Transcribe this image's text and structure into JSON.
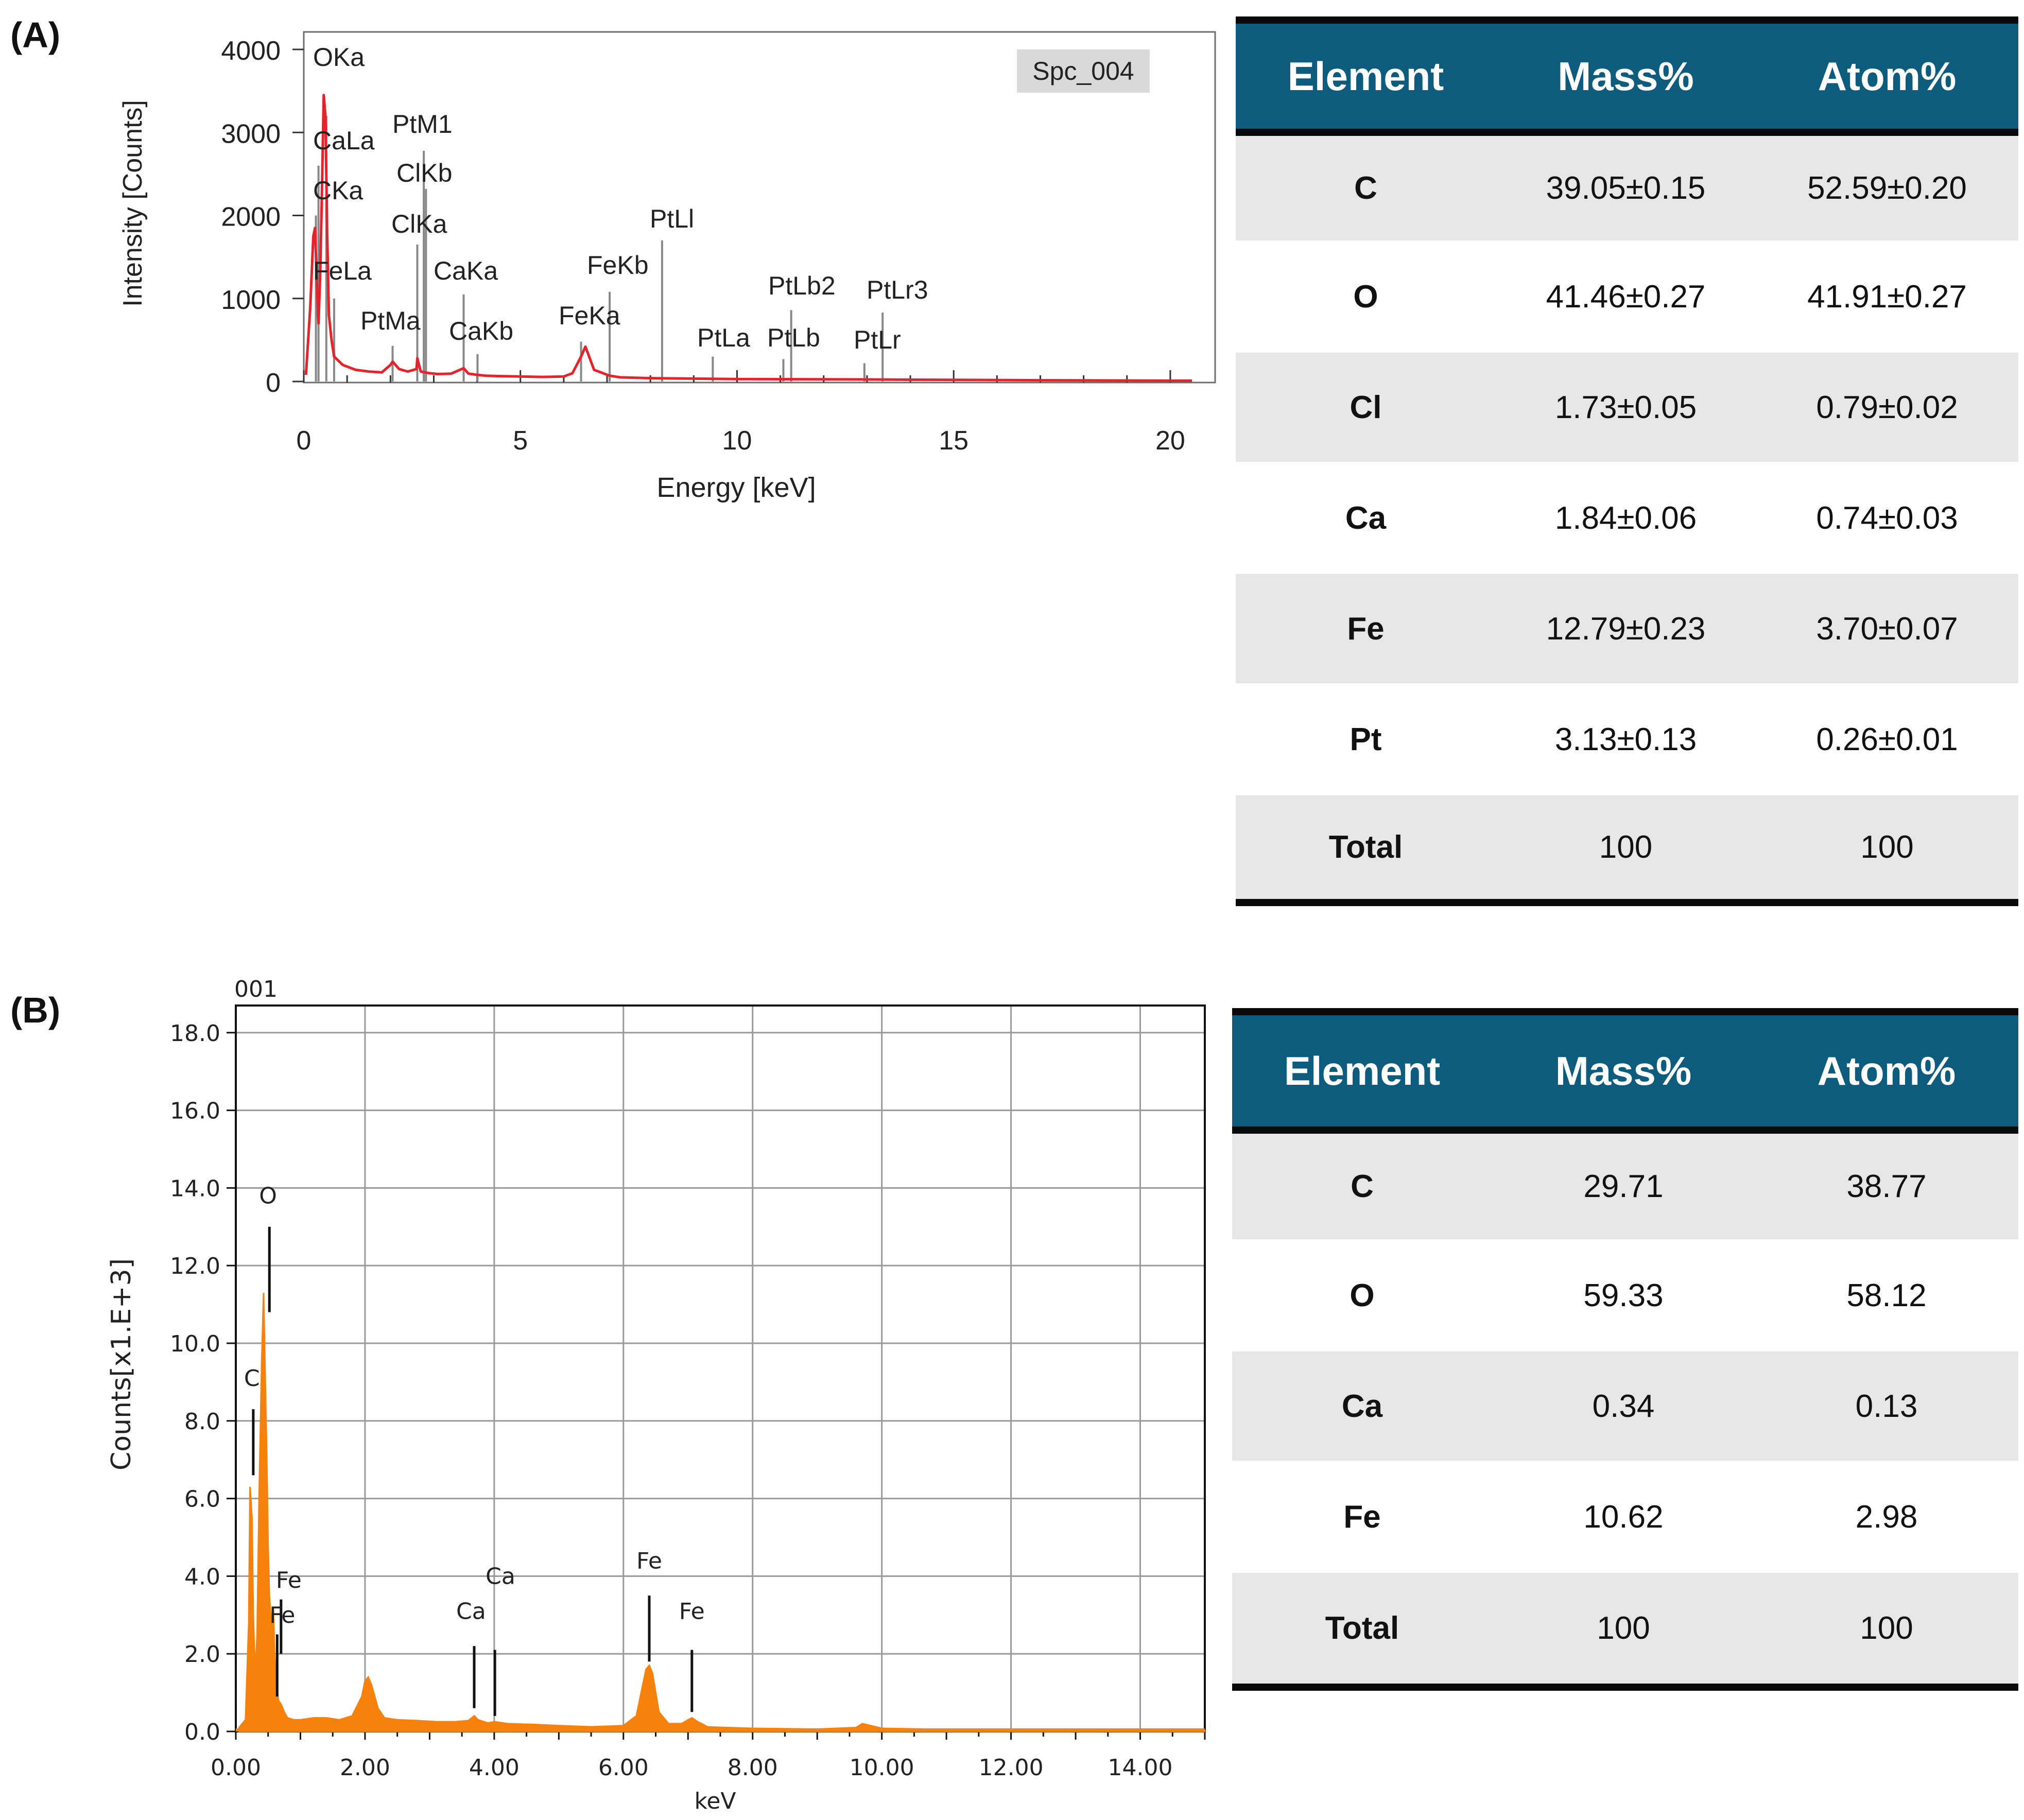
{
  "panels": [
    {
      "letter": "(A)",
      "chart_data": {
        "type": "line",
        "title": "",
        "legend_box": "Spc_004",
        "xlabel": "Energy [keV]",
        "ylabel": "Intensity [Counts]",
        "xlim": [
          0,
          20.5
        ],
        "ylim": [
          0,
          4000
        ],
        "xticks": [
          0,
          5,
          10,
          15,
          20
        ],
        "xtick_labels": [
          "0",
          "5",
          "10",
          "15",
          "20"
        ],
        "yticks": [
          0,
          1000,
          2000,
          3000,
          4000
        ],
        "ytick_labels": [
          "0",
          "1000",
          "2000",
          "3000",
          "4000"
        ],
        "grid": false,
        "line_color": "#e8212b",
        "marker_color": "#888888",
        "series": [
          {
            "x": [
              0.05,
              0.15,
              0.22,
              0.26,
              0.3,
              0.34,
              0.38,
              0.42,
              0.46,
              0.5,
              0.54,
              0.58,
              0.64,
              0.7,
              0.8,
              0.9,
              1.0,
              1.2,
              1.5,
              1.8,
              2.0,
              2.05,
              2.2,
              2.4,
              2.6,
              2.62,
              2.7,
              2.9,
              3.1,
              3.4,
              3.69,
              3.8,
              4.01,
              4.2,
              4.5,
              5.0,
              5.5,
              6.0,
              6.2,
              6.4,
              6.5,
              6.7,
              7.06,
              7.3,
              8.0,
              9.0,
              10.0,
              11.0,
              12.0,
              13.0,
              14.0,
              15.0,
              17.0,
              20.5
            ],
            "y": [
              80,
              900,
              1750,
              1850,
              1200,
              700,
              1300,
              2300,
              3450,
              3200,
              1800,
              800,
              500,
              300,
              250,
              200,
              180,
              140,
              120,
              110,
              200,
              240,
              150,
              120,
              150,
              280,
              120,
              100,
              90,
              95,
              160,
              95,
              80,
              70,
              65,
              60,
              55,
              60,
              100,
              300,
              420,
              140,
              70,
              50,
              40,
              35,
              30,
              28,
              26,
              25,
              22,
              20,
              15,
              10
            ]
          }
        ],
        "markers": [
          {
            "label": "OKa",
            "x": 0.52,
            "y": 3200
          },
          {
            "label": "CaLa",
            "x": 0.34,
            "y": 2600
          },
          {
            "label": "CKa",
            "x": 0.28,
            "y": 2000
          },
          {
            "label": "FeLa",
            "x": 0.7,
            "y": 1000
          },
          {
            "label": "PtMa",
            "x": 2.05,
            "y": 430
          },
          {
            "label": "PtM1",
            "x": 2.77,
            "y": 2780
          },
          {
            "label": "ClKb",
            "x": 2.82,
            "y": 2320
          },
          {
            "label": "ClKa",
            "x": 2.62,
            "y": 1650
          },
          {
            "label": "CaKa",
            "x": 3.69,
            "y": 1050
          },
          {
            "label": "CaKb",
            "x": 4.01,
            "y": 330
          },
          {
            "label": "FeKa",
            "x": 6.4,
            "y": 480
          },
          {
            "label": "FeKb",
            "x": 7.06,
            "y": 1080
          },
          {
            "label": "PtLl",
            "x": 8.27,
            "y": 1700
          },
          {
            "label": "PtLa",
            "x": 9.44,
            "y": 300
          },
          {
            "label": "PtLb",
            "x": 11.07,
            "y": 270
          },
          {
            "label": "PtLb2",
            "x": 11.25,
            "y": 860
          },
          {
            "label": "PtLr",
            "x": 12.94,
            "y": 220
          },
          {
            "label": "PtLr3",
            "x": 13.36,
            "y": 830
          }
        ]
      },
      "table": {
        "headers": [
          "Element",
          "Mass%",
          "Atom%"
        ],
        "rows": [
          {
            "element": "C",
            "mass": "39.05±0.15",
            "atom": "52.59±0.20"
          },
          {
            "element": "O",
            "mass": "41.46±0.27",
            "atom": "41.91±0.27"
          },
          {
            "element": "Cl",
            "mass": "1.73±0.05",
            "atom": "0.79±0.02"
          },
          {
            "element": "Ca",
            "mass": "1.84±0.06",
            "atom": "0.74±0.03"
          },
          {
            "element": "Fe",
            "mass": "12.79±0.23",
            "atom": "3.70±0.07"
          },
          {
            "element": "Pt",
            "mass": "3.13±0.13",
            "atom": "0.26±0.01"
          },
          {
            "element": "Total",
            "mass": "100",
            "atom": "100"
          }
        ]
      }
    },
    {
      "letter": "(B)",
      "chart_data": {
        "type": "bar",
        "title": "001",
        "xlabel": "keV",
        "ylabel": "Counts[x1.E+3]",
        "xlim": [
          0,
          15
        ],
        "ylim": [
          0,
          18.7
        ],
        "xticks": [
          0,
          2,
          4,
          6,
          8,
          10,
          12,
          14
        ],
        "xtick_labels": [
          "0.00",
          "2.00",
          "4.00",
          "6.00",
          "8.00",
          "10.00",
          "12.00",
          "14.00"
        ],
        "yticks": [
          0,
          2,
          4,
          6,
          8,
          10,
          12,
          14,
          16,
          18
        ],
        "ytick_labels": [
          "0.0",
          "2.0",
          "4.0",
          "6.0",
          "8.0",
          "10.0",
          "12.0",
          "14.0",
          "16.0",
          "18.0"
        ],
        "grid": true,
        "bar_color": "#f6820d",
        "series": [
          {
            "x": [
              0.05,
              0.1,
              0.15,
              0.2,
              0.22,
              0.25,
              0.27,
              0.3,
              0.33,
              0.36,
              0.4,
              0.43,
              0.45,
              0.48,
              0.5,
              0.52,
              0.55,
              0.58,
              0.6,
              0.63,
              0.66,
              0.7,
              0.75,
              0.8,
              0.9,
              1.0,
              1.2,
              1.4,
              1.6,
              1.8,
              1.95,
              2.0,
              2.05,
              2.1,
              2.15,
              2.2,
              2.3,
              2.5,
              2.8,
              3.1,
              3.4,
              3.6,
              3.69,
              3.75,
              3.9,
              4.01,
              4.2,
              4.6,
              5.0,
              5.5,
              6.0,
              6.2,
              6.3,
              6.35,
              6.4,
              6.45,
              6.5,
              6.55,
              6.7,
              6.9,
              7.0,
              7.06,
              7.15,
              7.3,
              7.6,
              8.0,
              9.0,
              9.6,
              9.7,
              10.0,
              11.0,
              11.6,
              12.0,
              13.0,
              14.0,
              15.0
            ],
            "y": [
              0.1,
              0.2,
              0.3,
              2.8,
              6.3,
              5.5,
              3.0,
              1.5,
              2.5,
              6.0,
              9.5,
              11.3,
              9.5,
              7.0,
              4.8,
              3.5,
              2.8,
              3.2,
              2.0,
              1.2,
              0.8,
              0.7,
              0.5,
              0.35,
              0.3,
              0.3,
              0.35,
              0.35,
              0.3,
              0.4,
              0.9,
              1.3,
              1.4,
              1.2,
              0.9,
              0.6,
              0.35,
              0.3,
              0.28,
              0.25,
              0.25,
              0.28,
              0.4,
              0.3,
              0.22,
              0.25,
              0.2,
              0.18,
              0.15,
              0.12,
              0.15,
              0.4,
              1.2,
              1.6,
              1.7,
              1.5,
              1.0,
              0.5,
              0.2,
              0.2,
              0.3,
              0.35,
              0.25,
              0.12,
              0.1,
              0.08,
              0.06,
              0.1,
              0.2,
              0.08,
              0.05,
              0.05,
              0.03,
              0.02,
              0.02,
              0.02
            ]
          }
        ],
        "markers": [
          {
            "label": "O",
            "x": 0.52,
            "y_bottom": 10.8,
            "y_top": 13.0,
            "label_y": 13.6
          },
          {
            "label": "C",
            "x": 0.27,
            "y_bottom": 6.6,
            "y_top": 8.3,
            "label_y": 8.9
          },
          {
            "label": "Fe",
            "x": 0.7,
            "y_bottom": 2.0,
            "y_top": 3.4,
            "label_y": 3.7
          },
          {
            "label": "Fe",
            "x": 0.64,
            "y_bottom": 0.9,
            "y_top": 2.5,
            "label_y": 2.8
          },
          {
            "label": "Ca",
            "x": 4.01,
            "y_bottom": 0.4,
            "y_top": 2.1,
            "label_y": 3.8
          },
          {
            "label": "Ca",
            "x": 3.69,
            "y_bottom": 0.6,
            "y_top": 2.2,
            "label_y": 2.9
          },
          {
            "label": "Fe",
            "x": 6.4,
            "y_bottom": 1.8,
            "y_top": 3.5,
            "label_y": 4.2
          },
          {
            "label": "Fe",
            "x": 7.06,
            "y_bottom": 0.5,
            "y_top": 2.1,
            "label_y": 2.9
          }
        ]
      },
      "table": {
        "headers": [
          "Element",
          "Mass%",
          "Atom%"
        ],
        "rows": [
          {
            "element": "C",
            "mass": "29.71",
            "atom": "38.77"
          },
          {
            "element": "O",
            "mass": "59.33",
            "atom": "58.12"
          },
          {
            "element": "Ca",
            "mass": "0.34",
            "atom": "0.13"
          },
          {
            "element": "Fe",
            "mass": "10.62",
            "atom": "2.98"
          },
          {
            "element": "Total",
            "mass": "100",
            "atom": "100"
          }
        ]
      }
    }
  ]
}
